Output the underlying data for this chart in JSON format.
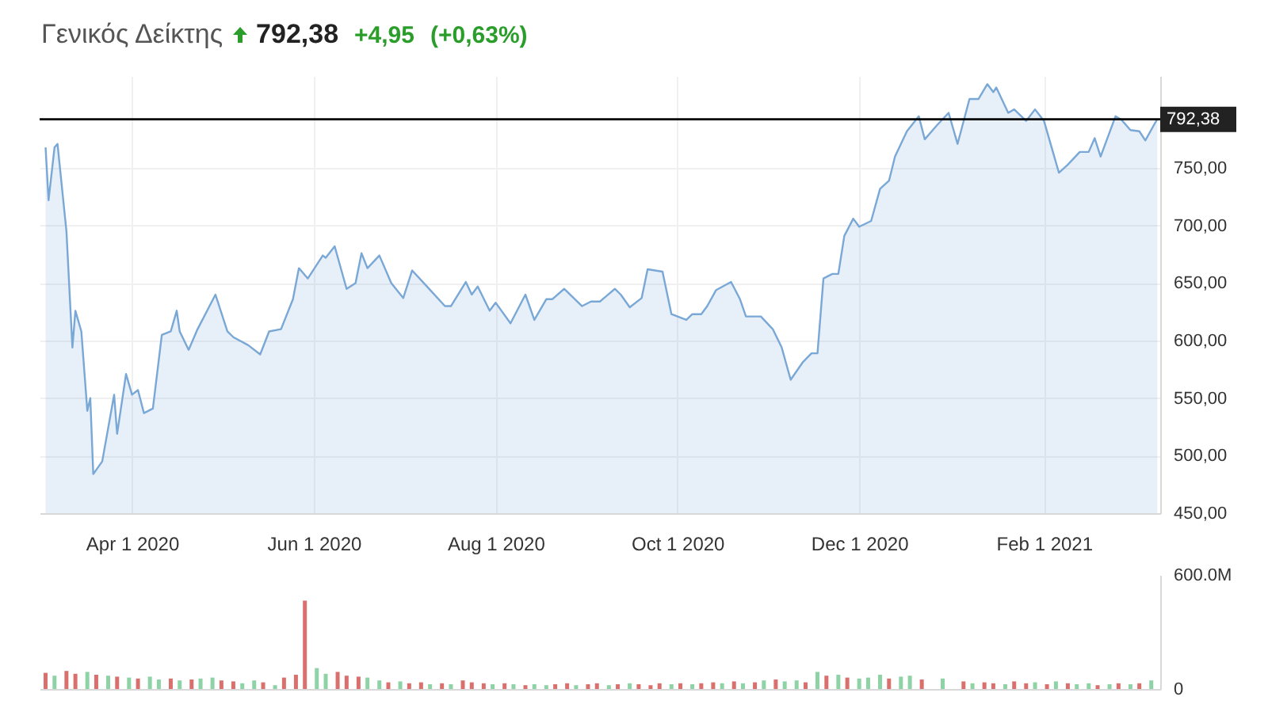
{
  "chart_data": [
    {
      "type": "area",
      "title": "Γενικός Δείκτης",
      "annotations": [
        "792,38",
        "+4,95",
        "(+0,63%)"
      ],
      "x": [
        "2020-03-03",
        "2020-03-04",
        "2020-03-06",
        "2020-03-07",
        "2020-03-10",
        "2020-03-12",
        "2020-03-13",
        "2020-03-15",
        "2020-03-17",
        "2020-03-18",
        "2020-03-19",
        "2020-03-22",
        "2020-03-26",
        "2020-03-27",
        "2020-03-30",
        "2020-04-01",
        "2020-04-03",
        "2020-04-05",
        "2020-04-08",
        "2020-04-11",
        "2020-04-14",
        "2020-04-16",
        "2020-04-17",
        "2020-04-20",
        "2020-04-23",
        "2020-04-27",
        "2020-04-29",
        "2020-05-03",
        "2020-05-05",
        "2020-05-10",
        "2020-05-14",
        "2020-05-17",
        "2020-05-21",
        "2020-05-25",
        "2020-05-27",
        "2020-05-30",
        "2020-06-04",
        "2020-06-05",
        "2020-06-08",
        "2020-06-12",
        "2020-06-15",
        "2020-06-17",
        "2020-06-19",
        "2020-06-23",
        "2020-06-27",
        "2020-07-01",
        "2020-07-04",
        "2020-07-09",
        "2020-07-15",
        "2020-07-17",
        "2020-07-22",
        "2020-07-24",
        "2020-07-26",
        "2020-07-30",
        "2020-08-01",
        "2020-08-06",
        "2020-08-11",
        "2020-08-14",
        "2020-08-18",
        "2020-08-20",
        "2020-08-24",
        "2020-08-30",
        "2020-09-02",
        "2020-09-05",
        "2020-09-10",
        "2020-09-12",
        "2020-09-15",
        "2020-09-19",
        "2020-09-21",
        "2020-09-26",
        "2020-09-29",
        "2020-10-04",
        "2020-10-06",
        "2020-10-09",
        "2020-10-11",
        "2020-10-14",
        "2020-10-19",
        "2020-10-22",
        "2020-10-24",
        "2020-10-29",
        "2020-11-02",
        "2020-11-05",
        "2020-11-08",
        "2020-11-12",
        "2020-11-15",
        "2020-11-17",
        "2020-11-19",
        "2020-11-22",
        "2020-11-24",
        "2020-11-26",
        "2020-11-29",
        "2020-12-01",
        "2020-12-05",
        "2020-12-08",
        "2020-12-11",
        "2020-12-13",
        "2020-12-17",
        "2020-12-21",
        "2020-12-23",
        "2020-12-27",
        "2020-12-31",
        "2021-01-03",
        "2021-01-07",
        "2021-01-10",
        "2021-01-13",
        "2021-01-15",
        "2021-01-16",
        "2021-01-20",
        "2021-01-22",
        "2021-01-26",
        "2021-01-29",
        "2021-02-01",
        "2021-02-04",
        "2021-02-06",
        "2021-02-09",
        "2021-02-13",
        "2021-02-16",
        "2021-02-18",
        "2021-02-20",
        "2021-02-25",
        "2021-02-27",
        "2021-03-02",
        "2021-03-05",
        "2021-03-07",
        "2021-03-10",
        "2021-03-11"
      ],
      "series": [
        {
          "color": "#7aa8d6",
          "values": [
            768,
            722,
            768,
            771,
            695,
            594,
            626,
            608,
            539,
            550,
            484,
            495,
            553,
            519,
            571,
            553,
            557,
            537,
            541,
            605,
            608,
            626,
            608,
            592,
            610,
            630,
            640,
            608,
            603,
            596,
            588,
            608,
            610,
            636,
            663,
            654,
            674,
            672,
            682,
            645,
            650,
            676,
            663,
            674,
            650,
            637,
            661,
            647,
            630,
            630,
            651,
            640,
            647,
            626,
            633,
            615,
            640,
            618,
            636,
            636,
            645,
            630,
            634,
            634,
            645,
            640,
            629,
            637,
            662,
            660,
            623,
            618,
            623,
            623,
            630,
            644,
            651,
            636,
            621,
            621,
            610,
            594,
            566,
            581,
            589,
            589,
            654,
            658,
            658,
            691,
            706,
            699,
            704,
            732,
            739,
            760,
            782,
            795,
            775,
            787,
            798,
            771,
            810,
            810,
            823,
            816,
            820,
            798,
            801,
            791,
            801,
            791,
            764,
            746,
            753,
            764,
            764,
            776,
            760,
            795,
            792,
            783,
            782,
            774,
            788,
            792.38
          ]
        }
      ],
      "xlim": [
        "2020-03-01",
        "2021-03-12"
      ],
      "xticks": [
        {
          "value": "2020-04-01",
          "label": "Apr 1 2020"
        },
        {
          "value": "2020-06-01",
          "label": "Jun 1 2020"
        },
        {
          "value": "2020-08-01",
          "label": "Aug 1 2020"
        },
        {
          "value": "2020-10-01",
          "label": "Oct 1 2020"
        },
        {
          "value": "2020-12-01",
          "label": "Dec 1 2020"
        },
        {
          "value": "2021-02-01",
          "label": "Feb 1 2021"
        }
      ],
      "ylim": [
        450,
        830
      ],
      "yticks": [
        {
          "value": 450,
          "label": "450,00"
        },
        {
          "value": 500,
          "label": "500,00"
        },
        {
          "value": 550,
          "label": "550,00"
        },
        {
          "value": 600,
          "label": "600,00"
        },
        {
          "value": 650,
          "label": "650,00"
        },
        {
          "value": 700,
          "label": "700,00"
        },
        {
          "value": 750,
          "label": "750,00"
        }
      ],
      "ref_lines": [
        {
          "axis": "y",
          "value": 792.38,
          "label": "792,38",
          "color": "#000000"
        }
      ],
      "grid": true
    },
    {
      "type": "bar",
      "x": [
        "2020-03-03",
        "2020-03-06",
        "2020-03-10",
        "2020-03-13",
        "2020-03-17",
        "2020-03-20",
        "2020-03-24",
        "2020-03-27",
        "2020-03-31",
        "2020-04-03",
        "2020-04-07",
        "2020-04-10",
        "2020-04-14",
        "2020-04-17",
        "2020-04-21",
        "2020-04-24",
        "2020-04-28",
        "2020-05-01",
        "2020-05-05",
        "2020-05-08",
        "2020-05-12",
        "2020-05-15",
        "2020-05-19",
        "2020-05-22",
        "2020-05-26",
        "2020-05-29",
        "2020-06-02",
        "2020-06-05",
        "2020-06-09",
        "2020-06-12",
        "2020-06-16",
        "2020-06-19",
        "2020-06-23",
        "2020-06-26",
        "2020-06-30",
        "2020-07-03",
        "2020-07-07",
        "2020-07-10",
        "2020-07-14",
        "2020-07-17",
        "2020-07-21",
        "2020-07-24",
        "2020-07-28",
        "2020-07-31",
        "2020-08-04",
        "2020-08-07",
        "2020-08-11",
        "2020-08-14",
        "2020-08-18",
        "2020-08-21",
        "2020-08-25",
        "2020-08-28",
        "2020-09-01",
        "2020-09-04",
        "2020-09-08",
        "2020-09-11",
        "2020-09-15",
        "2020-09-18",
        "2020-09-22",
        "2020-09-25",
        "2020-09-29",
        "2020-10-02",
        "2020-10-06",
        "2020-10-09",
        "2020-10-13",
        "2020-10-16",
        "2020-10-20",
        "2020-10-23",
        "2020-10-27",
        "2020-10-30",
        "2020-11-03",
        "2020-11-06",
        "2020-11-10",
        "2020-11-13",
        "2020-11-17",
        "2020-11-20",
        "2020-11-24",
        "2020-11-27",
        "2020-12-01",
        "2020-12-04",
        "2020-12-08",
        "2020-12-11",
        "2020-12-15",
        "2020-12-18",
        "2020-12-22",
        "2020-12-29",
        "2021-01-05",
        "2021-01-08",
        "2021-01-12",
        "2021-01-15",
        "2021-01-19",
        "2021-01-22",
        "2021-01-26",
        "2021-01-29",
        "2021-02-02",
        "2021-02-05",
        "2021-02-09",
        "2021-02-12",
        "2021-02-16",
        "2021-02-19",
        "2021-02-23",
        "2021-02-26",
        "2021-03-02",
        "2021-03-05",
        "2021-03-09"
      ],
      "values": [
        85,
        70,
        95,
        80,
        90,
        75,
        70,
        65,
        60,
        55,
        65,
        50,
        55,
        45,
        50,
        55,
        60,
        45,
        40,
        30,
        45,
        35,
        20,
        60,
        75,
        465,
        110,
        80,
        90,
        70,
        65,
        60,
        45,
        35,
        40,
        30,
        35,
        25,
        30,
        25,
        45,
        35,
        30,
        25,
        30,
        25,
        20,
        25,
        20,
        25,
        30,
        20,
        25,
        30,
        20,
        25,
        30,
        25,
        20,
        30,
        25,
        30,
        25,
        30,
        35,
        30,
        40,
        30,
        35,
        45,
        50,
        40,
        45,
        35,
        90,
        70,
        75,
        60,
        55,
        60,
        75,
        55,
        65,
        70,
        50,
        55,
        40,
        30,
        35,
        30,
        25,
        40,
        30,
        35,
        25,
        40,
        30,
        25,
        30,
        20,
        25,
        30,
        25,
        30,
        45
      ],
      "colors": [
        "#d9706e",
        "#8ed3a5",
        "#d9706e",
        "#d9706e",
        "#8ed3a5",
        "#d9706e",
        "#8ed3a5",
        "#d9706e",
        "#8ed3a5",
        "#d9706e",
        "#8ed3a5",
        "#8ed3a5",
        "#d9706e",
        "#8ed3a5",
        "#d9706e",
        "#8ed3a5",
        "#8ed3a5",
        "#d9706e",
        "#d9706e",
        "#8ed3a5",
        "#8ed3a5",
        "#d9706e",
        "#8ed3a5",
        "#d9706e",
        "#d9706e",
        "#d9706e",
        "#8ed3a5",
        "#8ed3a5",
        "#d9706e",
        "#d9706e",
        "#d9706e",
        "#8ed3a5",
        "#8ed3a5",
        "#d9706e",
        "#8ed3a5",
        "#d9706e",
        "#d9706e",
        "#8ed3a5",
        "#d9706e",
        "#8ed3a5",
        "#d9706e",
        "#d9706e",
        "#d9706e",
        "#8ed3a5",
        "#d9706e",
        "#8ed3a5",
        "#d9706e",
        "#8ed3a5",
        "#8ed3a5",
        "#d9706e",
        "#d9706e",
        "#8ed3a5",
        "#d9706e",
        "#d9706e",
        "#8ed3a5",
        "#d9706e",
        "#8ed3a5",
        "#d9706e",
        "#d9706e",
        "#d9706e",
        "#8ed3a5",
        "#d9706e",
        "#8ed3a5",
        "#d9706e",
        "#d9706e",
        "#8ed3a5",
        "#d9706e",
        "#8ed3a5",
        "#d9706e",
        "#8ed3a5",
        "#d9706e",
        "#8ed3a5",
        "#8ed3a5",
        "#d9706e",
        "#8ed3a5",
        "#d9706e",
        "#8ed3a5",
        "#d9706e",
        "#8ed3a5",
        "#8ed3a5",
        "#8ed3a5",
        "#d9706e",
        "#8ed3a5",
        "#8ed3a5",
        "#d9706e",
        "#8ed3a5",
        "#d9706e",
        "#8ed3a5",
        "#d9706e",
        "#d9706e",
        "#8ed3a5",
        "#d9706e",
        "#d9706e",
        "#8ed3a5",
        "#d9706e",
        "#8ed3a5",
        "#d9706e",
        "#8ed3a5",
        "#8ed3a5",
        "#d9706e",
        "#8ed3a5",
        "#d9706e",
        "#8ed3a5",
        "#d9706e",
        "#8ed3a5"
      ],
      "xlim": [
        "2020-03-01",
        "2021-03-12"
      ],
      "ylim": [
        0,
        600
      ],
      "yticks": [
        0,
        {
          "value": 600,
          "label": "600.0M"
        }
      ],
      "tick_labels": "y",
      "grid": "x"
    }
  ]
}
